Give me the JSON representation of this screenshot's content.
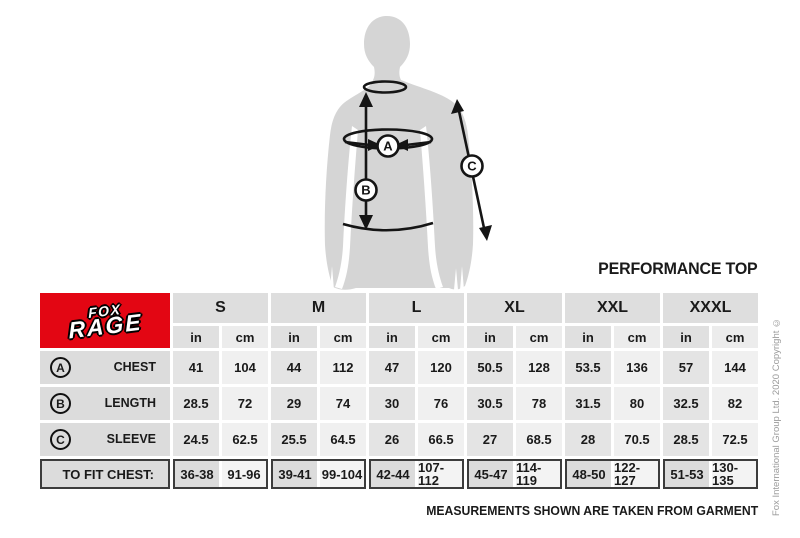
{
  "title": "PERFORMANCE TOP",
  "note": "MEASUREMENTS SHOWN ARE TAKEN FROM GARMENT",
  "copyright": "Fox International Group Ltd. 2020 Copyright ©",
  "logo": {
    "line1": "FOX",
    "line2": "RAGE"
  },
  "diagram": {
    "marker_a": "A",
    "marker_b": "B",
    "marker_c": "C"
  },
  "chart_data": {
    "type": "table",
    "title": "PERFORMANCE TOP",
    "sizes": [
      "S",
      "M",
      "L",
      "XL",
      "XXL",
      "XXXL"
    ],
    "units": [
      "in",
      "cm"
    ],
    "rows": [
      {
        "marker": "A",
        "label": "CHEST",
        "values": [
          "41",
          "104",
          "44",
          "112",
          "47",
          "120",
          "50.5",
          "128",
          "53.5",
          "136",
          "57",
          "144"
        ]
      },
      {
        "marker": "B",
        "label": "LENGTH",
        "values": [
          "28.5",
          "72",
          "29",
          "74",
          "30",
          "76",
          "30.5",
          "78",
          "31.5",
          "80",
          "32.5",
          "82"
        ]
      },
      {
        "marker": "C",
        "label": "SLEEVE",
        "values": [
          "24.5",
          "62.5",
          "25.5",
          "64.5",
          "26",
          "66.5",
          "27",
          "68.5",
          "28",
          "70.5",
          "28.5",
          "72.5"
        ]
      }
    ],
    "fit_row": {
      "label": "TO FIT CHEST:",
      "values": [
        [
          "36-38",
          "91-96"
        ],
        [
          "39-41",
          "99-104"
        ],
        [
          "42-44",
          "107-112"
        ],
        [
          "45-47",
          "114-119"
        ],
        [
          "48-50",
          "122-127"
        ],
        [
          "51-53",
          "130-135"
        ]
      ]
    }
  },
  "colors": {
    "brand_red": "#e30613",
    "silhouette_gray": "#d5d5d5",
    "annotation_black": "#151515",
    "cell_gray": "#dcdcdc",
    "cell_light": "#f0f0f0",
    "fit_border_dark": "#3c3c3c",
    "copyright_gray": "#9b9b9b"
  }
}
